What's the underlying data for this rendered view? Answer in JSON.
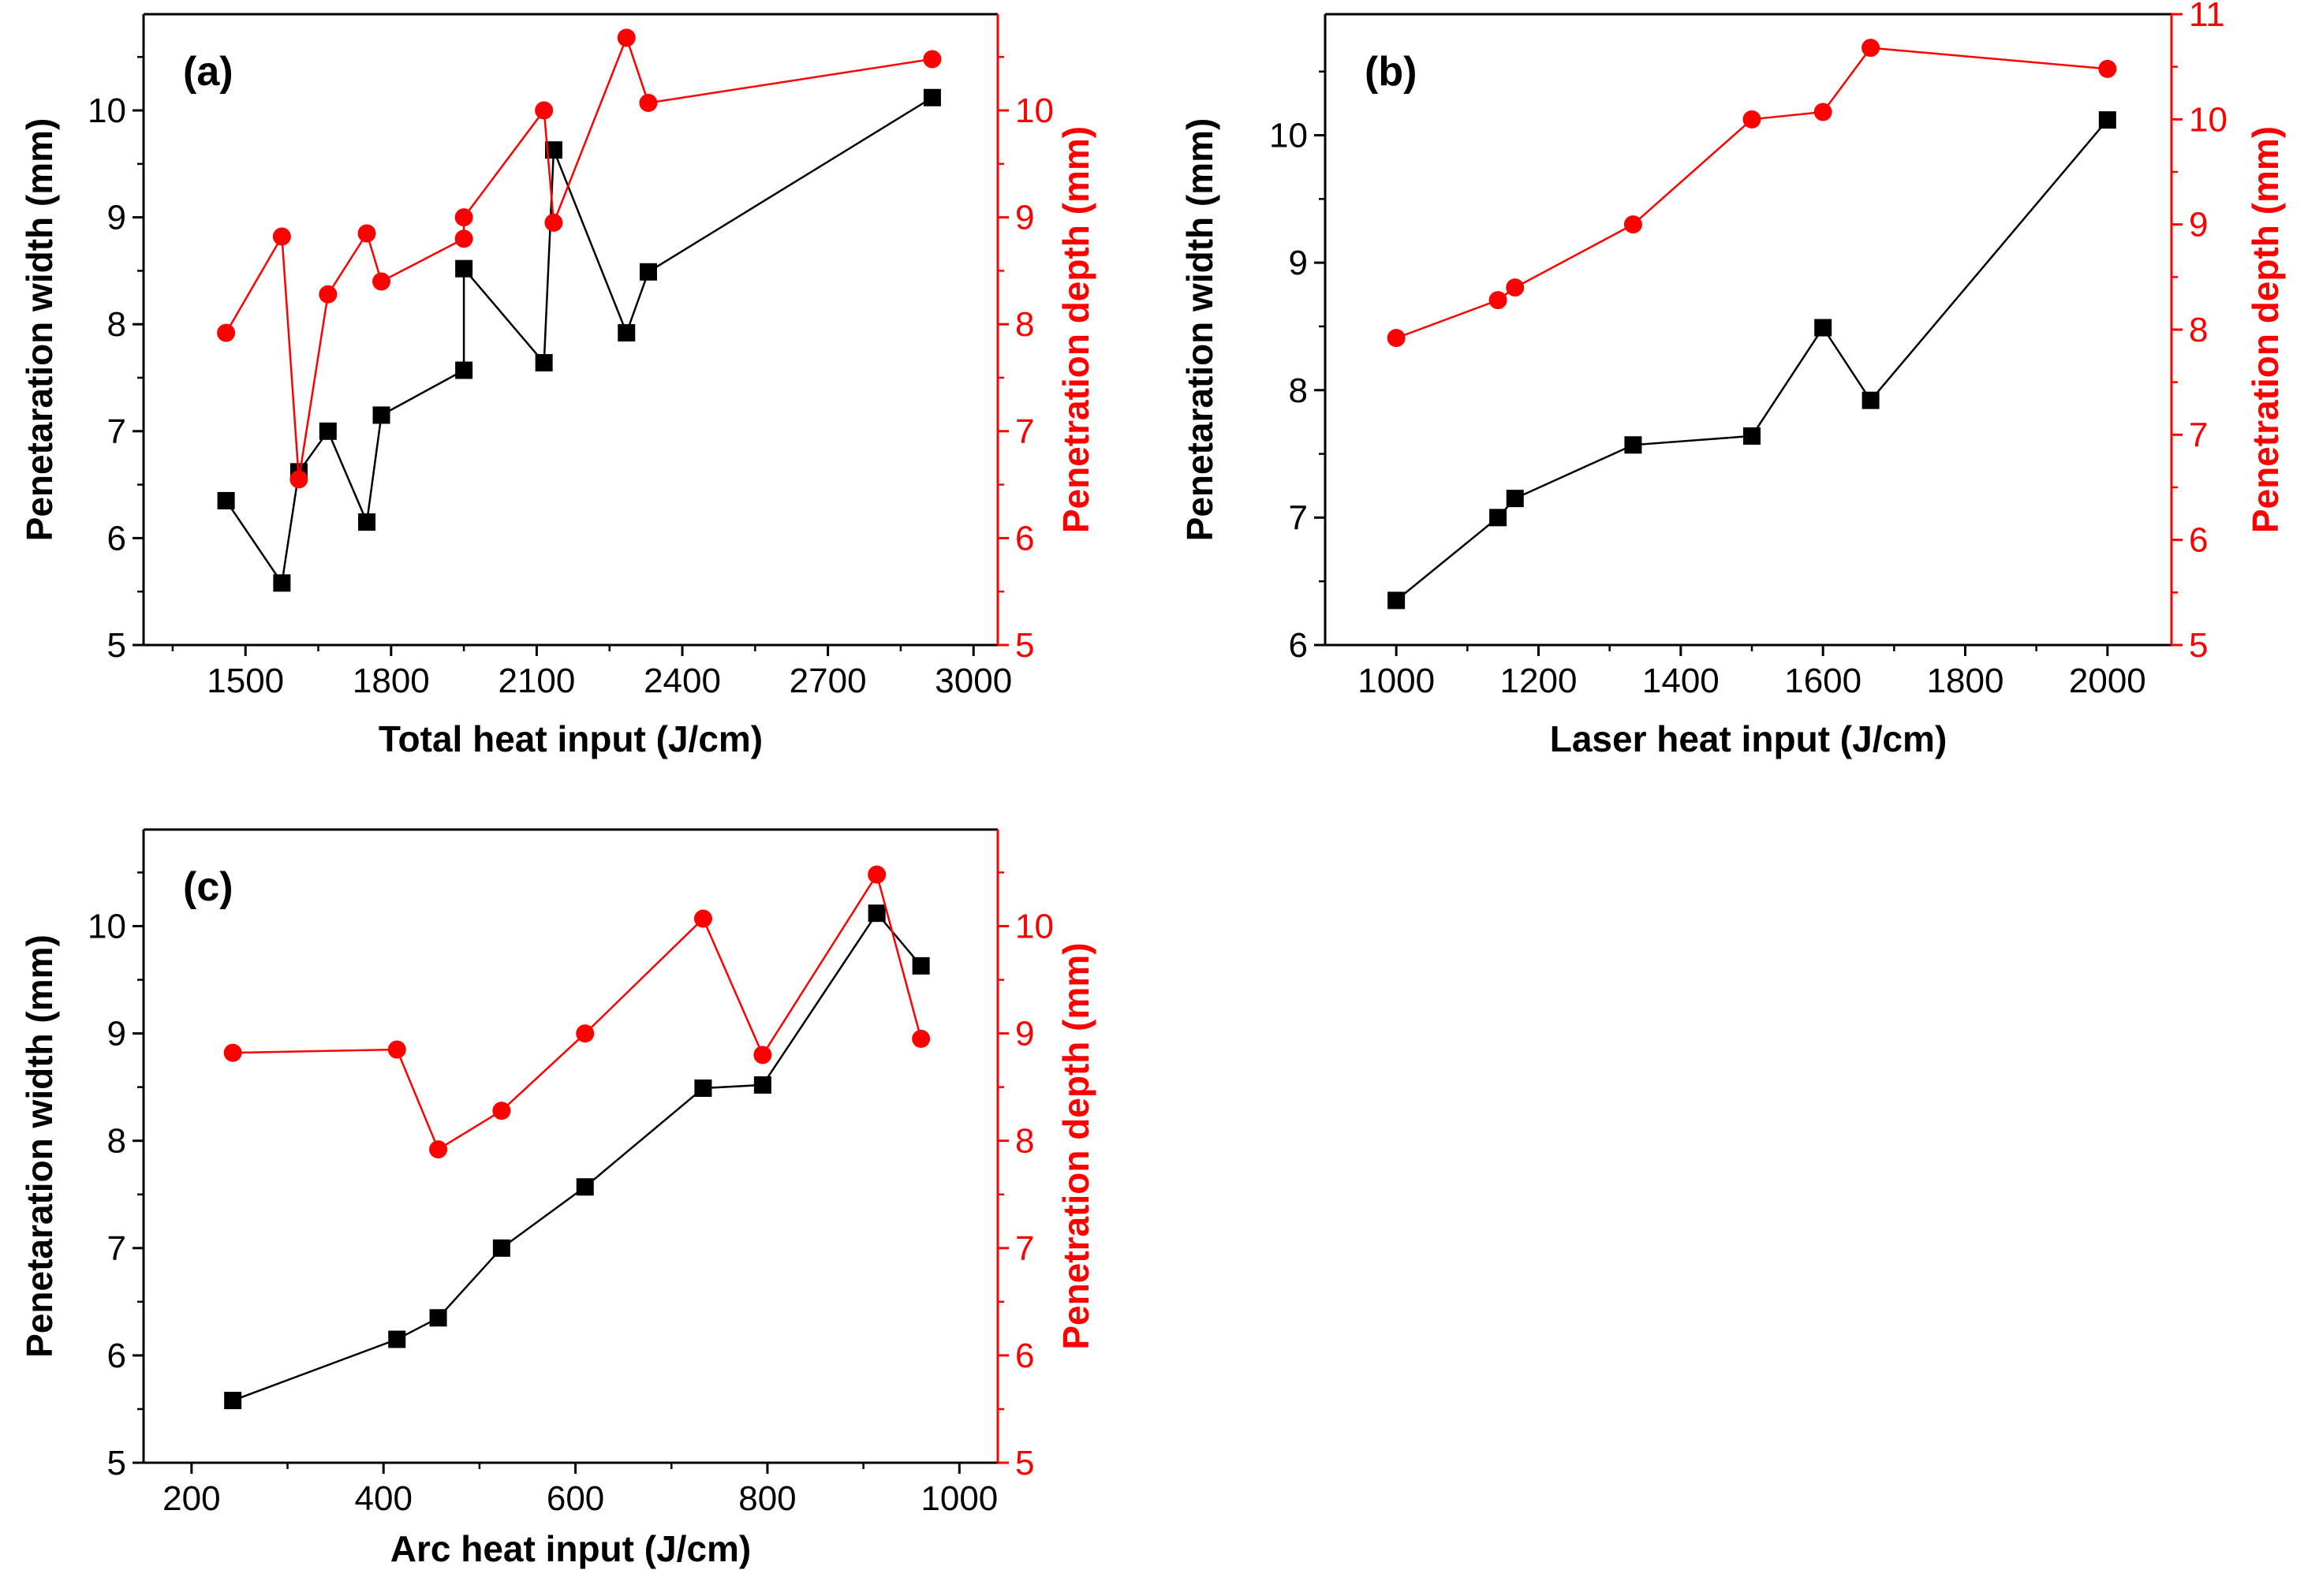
{
  "chart_data": [
    {
      "type": "line",
      "panel_label": "(a)",
      "xlabel": "Total heat input (J/cm)",
      "ylabel_left": "Penetaration width (mm)",
      "ylabel_right": "Penetration depth (mm)",
      "xlim": [
        1290,
        3050
      ],
      "xticks": [
        1500,
        1800,
        2100,
        2400,
        2700,
        3000
      ],
      "xtick_labels": [
        "1500",
        "1800",
        "2100",
        "2400",
        "2700",
        "3000"
      ],
      "ylim_left": [
        5,
        10.9
      ],
      "yticks_left": [
        5,
        6,
        7,
        8,
        9,
        10
      ],
      "ylim_right": [
        5,
        10.9
      ],
      "yticks_right": [
        5,
        6,
        7,
        8,
        9,
        10
      ],
      "series": [
        {
          "name": "Penetration width",
          "axis": "left",
          "color": "#000000",
          "marker": "square",
          "x": [
            1460,
            1575,
            1610,
            1670,
            1750,
            1780,
            1950,
            1950,
            2115,
            2135,
            2285,
            2330,
            2915
          ],
          "y": [
            6.35,
            5.58,
            6.62,
            7.0,
            6.15,
            7.15,
            7.57,
            8.52,
            7.64,
            9.63,
            7.92,
            8.49,
            10.12
          ]
        },
        {
          "name": "Penetration depth",
          "axis": "right",
          "color": "#ff0000",
          "marker": "circle",
          "x": [
            1460,
            1575,
            1610,
            1670,
            1750,
            1780,
            1950,
            1950,
            2115,
            2135,
            2285,
            2330,
            2915
          ],
          "y": [
            7.92,
            8.82,
            6.55,
            8.28,
            8.85,
            8.4,
            8.8,
            9.0,
            10.0,
            8.95,
            10.68,
            10.07,
            10.48
          ]
        }
      ]
    },
    {
      "type": "line",
      "panel_label": "(b)",
      "xlabel": "Laser heat input (J/cm)",
      "ylabel_left": "Penetaration width (mm)",
      "ylabel_right": "Penetration depth (mm)",
      "xlim": [
        900,
        2090
      ],
      "xticks": [
        1000,
        1200,
        1400,
        1600,
        1800,
        2000
      ],
      "xtick_labels": [
        "1000",
        "1200",
        "1400",
        "1600",
        "1800",
        "2000"
      ],
      "ylim_left": [
        6,
        10.95
      ],
      "yticks_left": [
        6,
        7,
        8,
        9,
        10
      ],
      "ylim_right": [
        5,
        11
      ],
      "yticks_right": [
        5,
        6,
        7,
        8,
        9,
        10,
        11
      ],
      "series": [
        {
          "name": "Penetration width",
          "axis": "left",
          "color": "#000000",
          "marker": "square",
          "x": [
            1000,
            1143,
            1167,
            1333,
            1500,
            1600,
            1667,
            2000
          ],
          "y": [
            6.35,
            7.0,
            7.15,
            7.57,
            7.64,
            8.49,
            7.92,
            10.12
          ]
        },
        {
          "name": "Penetration depth",
          "axis": "right",
          "color": "#ff0000",
          "marker": "circle",
          "x": [
            1000,
            1143,
            1167,
            1333,
            1500,
            1600,
            1667,
            2000
          ],
          "y": [
            7.92,
            8.28,
            8.4,
            9.0,
            10.0,
            10.07,
            10.68,
            10.48
          ]
        }
      ]
    },
    {
      "type": "line",
      "panel_label": "(c)",
      "xlabel": "Arc heat input (J/cm)",
      "ylabel_left": "Penetaration width (mm)",
      "ylabel_right": "Penetration depth (mm)",
      "xlim": [
        150,
        1040
      ],
      "xticks": [
        200,
        400,
        600,
        800,
        1000
      ],
      "xtick_labels": [
        "200",
        "400",
        "600",
        "800",
        "1000"
      ],
      "ylim_left": [
        5,
        10.9
      ],
      "yticks_left": [
        5,
        6,
        7,
        8,
        9,
        10
      ],
      "ylim_right": [
        5,
        10.9
      ],
      "yticks_right": [
        5,
        6,
        7,
        8,
        9,
        10
      ],
      "series": [
        {
          "name": "Penetration width",
          "axis": "left",
          "color": "#000000",
          "marker": "square",
          "x": [
            243,
            414,
            457,
            523,
            610,
            733,
            795,
            914,
            960
          ],
          "y": [
            5.58,
            6.15,
            6.35,
            7.0,
            7.57,
            8.49,
            8.52,
            10.12,
            9.63
          ]
        },
        {
          "name": "Penetration depth",
          "axis": "right",
          "color": "#ff0000",
          "marker": "circle",
          "x": [
            243,
            414,
            457,
            523,
            610,
            733,
            795,
            914,
            960
          ],
          "y": [
            8.82,
            8.85,
            7.92,
            8.28,
            9.0,
            10.07,
            8.8,
            10.48,
            8.95
          ]
        }
      ]
    }
  ]
}
